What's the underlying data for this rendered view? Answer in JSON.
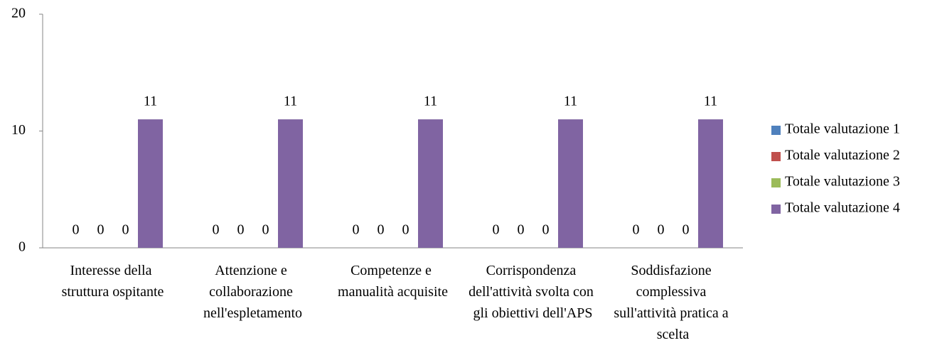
{
  "chart_data": {
    "type": "bar",
    "categories": [
      "Interesse della struttura ospitante",
      "Attenzione e collaborazione nell'espletamento",
      "Competenze e manualità acquisite",
      "Corrispondenza dell'attività svolta con gli obiettivi dell'APS",
      "Soddisfazione complessiva sull'attività pratica a scelta"
    ],
    "series": [
      {
        "name": "Totale valutazione 1",
        "color": "#4f81bd",
        "values": [
          0,
          0,
          0,
          0,
          0
        ]
      },
      {
        "name": "Totale valutazione 2",
        "color": "#c0504d",
        "values": [
          0,
          0,
          0,
          0,
          0
        ]
      },
      {
        "name": "Totale valutazione 3",
        "color": "#9bbb59",
        "values": [
          0,
          0,
          0,
          0,
          0
        ]
      },
      {
        "name": "Totale valutazione 4",
        "color": "#8064a2",
        "values": [
          11,
          11,
          11,
          11,
          11
        ]
      }
    ],
    "ylim": [
      0,
      20
    ],
    "yticks": [
      0,
      10,
      20
    ],
    "grid": false,
    "legend": "right"
  }
}
